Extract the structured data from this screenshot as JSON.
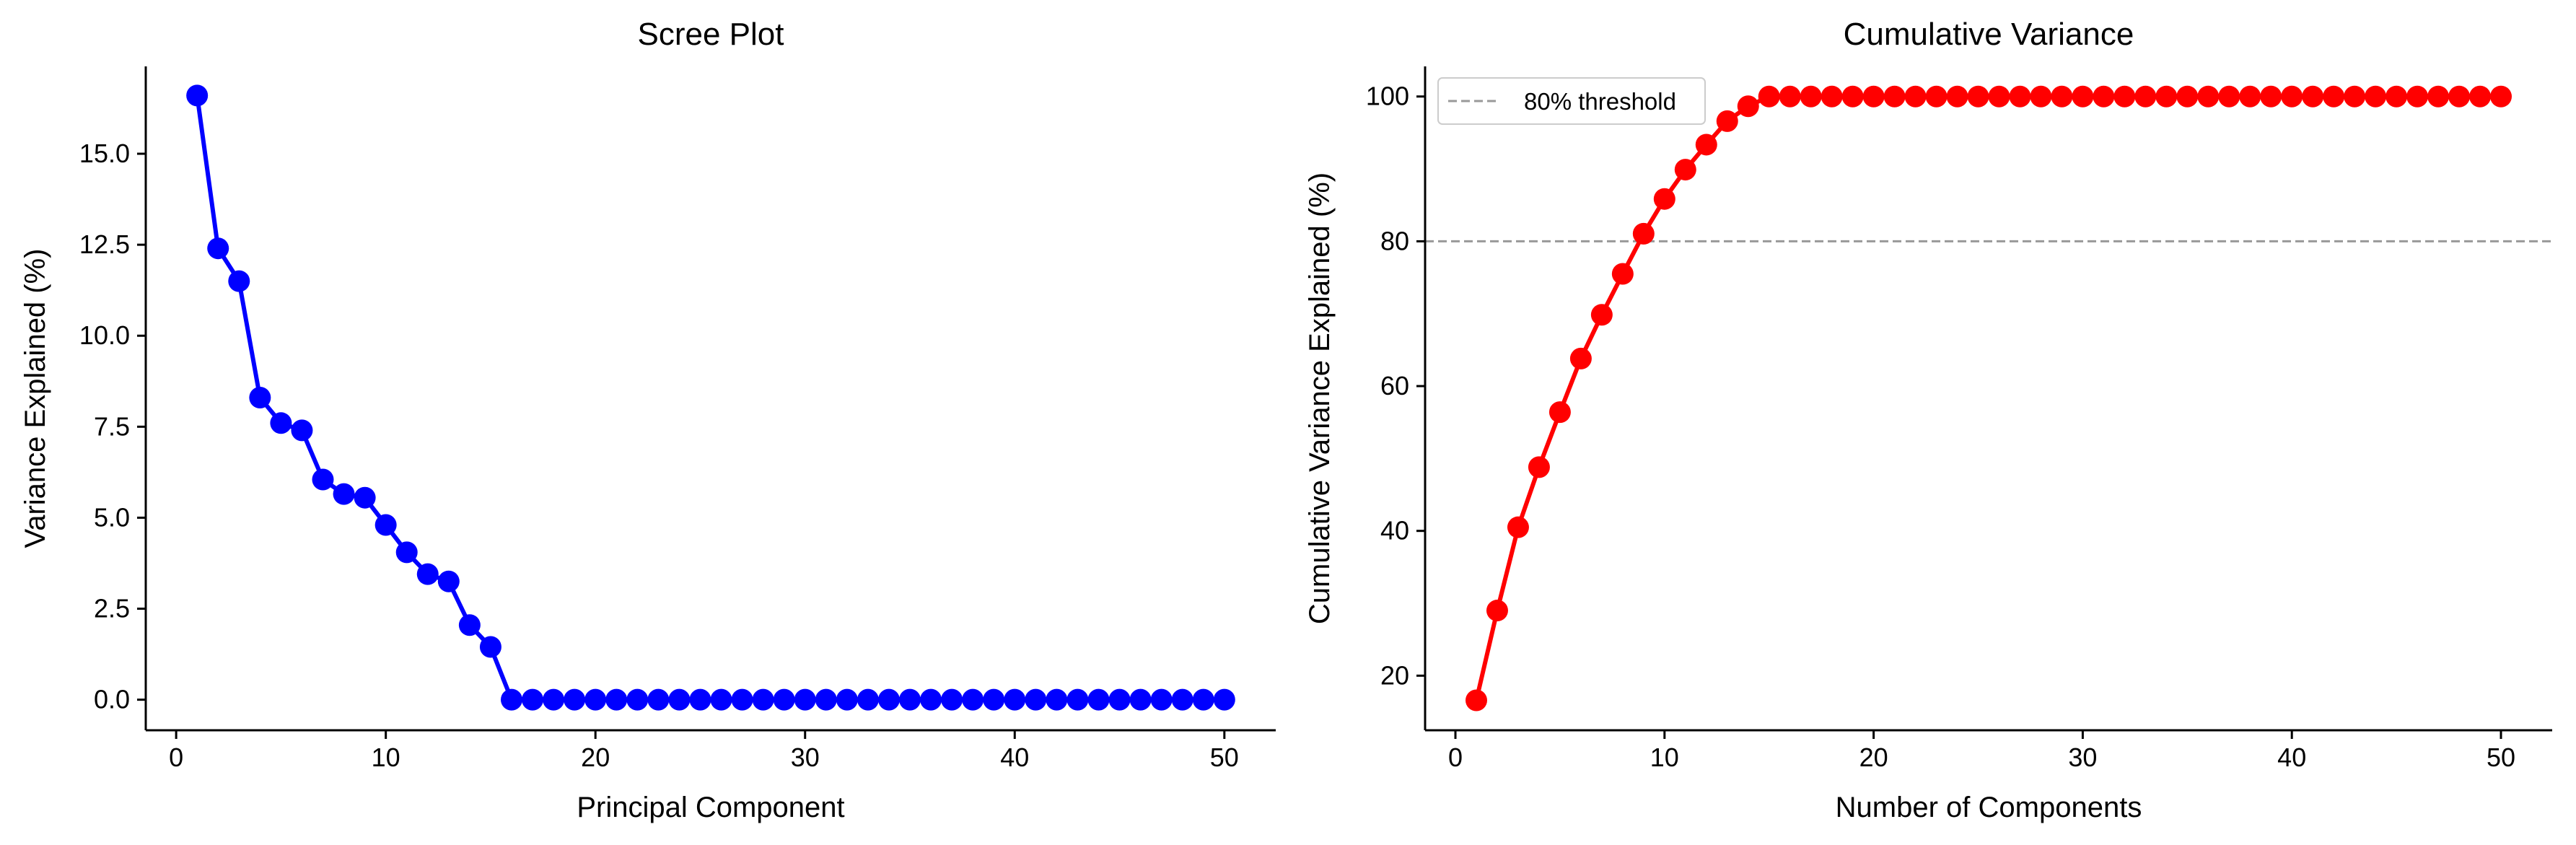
{
  "chart_data": [
    {
      "type": "line",
      "title": "Scree Plot",
      "xlabel": "Principal Component",
      "ylabel": "Variance Explained (%)",
      "xlim": [
        -1.45,
        52.45
      ],
      "ylim": [
        -0.84,
        17.4
      ],
      "xticks": [
        0,
        10,
        20,
        30,
        40,
        50
      ],
      "xtick_labels": [
        "0",
        "10",
        "20",
        "30",
        "40",
        "50"
      ],
      "yticks": [
        0,
        2.5,
        5,
        7.5,
        10,
        12.5,
        15
      ],
      "ytick_labels": [
        "0.0",
        "2.5",
        "5.0",
        "7.5",
        "10.0",
        "12.5",
        "15.0"
      ],
      "grid": false,
      "series": [
        {
          "color": "#0000ff",
          "marker": "circle",
          "x": [
            1,
            2,
            3,
            4,
            5,
            6,
            7,
            8,
            9,
            10,
            11,
            12,
            13,
            14,
            15,
            16,
            17,
            18,
            19,
            20,
            21,
            22,
            23,
            24,
            25,
            26,
            27,
            28,
            29,
            30,
            31,
            32,
            33,
            34,
            35,
            36,
            37,
            38,
            39,
            40,
            41,
            42,
            43,
            44,
            45,
            46,
            47,
            48,
            49,
            50
          ],
          "values": [
            16.6,
            12.4,
            11.5,
            8.3,
            7.6,
            7.4,
            6.05,
            5.65,
            5.55,
            4.8,
            4.05,
            3.45,
            3.25,
            2.05,
            1.45,
            0,
            0,
            0,
            0,
            0,
            0,
            0,
            0,
            0,
            0,
            0,
            0,
            0,
            0,
            0,
            0,
            0,
            0,
            0,
            0,
            0,
            0,
            0,
            0,
            0,
            0,
            0,
            0,
            0,
            0,
            0,
            0,
            0,
            0,
            0
          ]
        }
      ]
    },
    {
      "type": "line",
      "title": "Cumulative Variance",
      "xlabel": "Number of Components",
      "ylabel": "Cumulative Variance Explained (%)",
      "xlim": [
        -1.45,
        52.45
      ],
      "ylim": [
        12.46,
        104.16
      ],
      "xticks": [
        0,
        10,
        20,
        30,
        40,
        50
      ],
      "xtick_labels": [
        "0",
        "10",
        "20",
        "30",
        "40",
        "50"
      ],
      "yticks": [
        20,
        40,
        60,
        80,
        100
      ],
      "ytick_labels": [
        "20",
        "40",
        "60",
        "80",
        "100"
      ],
      "grid": false,
      "legend_position": "top-left",
      "threshold": {
        "value": 80,
        "label": "80% threshold",
        "color": "#999999",
        "style": "dashed"
      },
      "series": [
        {
          "color": "#ff0000",
          "marker": "circle",
          "x": [
            1,
            2,
            3,
            4,
            5,
            6,
            7,
            8,
            9,
            10,
            11,
            12,
            13,
            14,
            15,
            16,
            17,
            18,
            19,
            20,
            21,
            22,
            23,
            24,
            25,
            26,
            27,
            28,
            29,
            30,
            31,
            32,
            33,
            34,
            35,
            36,
            37,
            38,
            39,
            40,
            41,
            42,
            43,
            44,
            45,
            46,
            47,
            48,
            49,
            50
          ],
          "values": [
            16.6,
            29,
            40.5,
            48.8,
            56.4,
            63.8,
            69.85,
            75.5,
            81.05,
            85.85,
            89.9,
            93.35,
            96.6,
            98.65,
            100,
            100,
            100,
            100,
            100,
            100,
            100,
            100,
            100,
            100,
            100,
            100,
            100,
            100,
            100,
            100,
            100,
            100,
            100,
            100,
            100,
            100,
            100,
            100,
            100,
            100,
            100,
            100,
            100,
            100,
            100,
            100,
            100,
            100,
            100,
            100
          ]
        }
      ]
    }
  ]
}
